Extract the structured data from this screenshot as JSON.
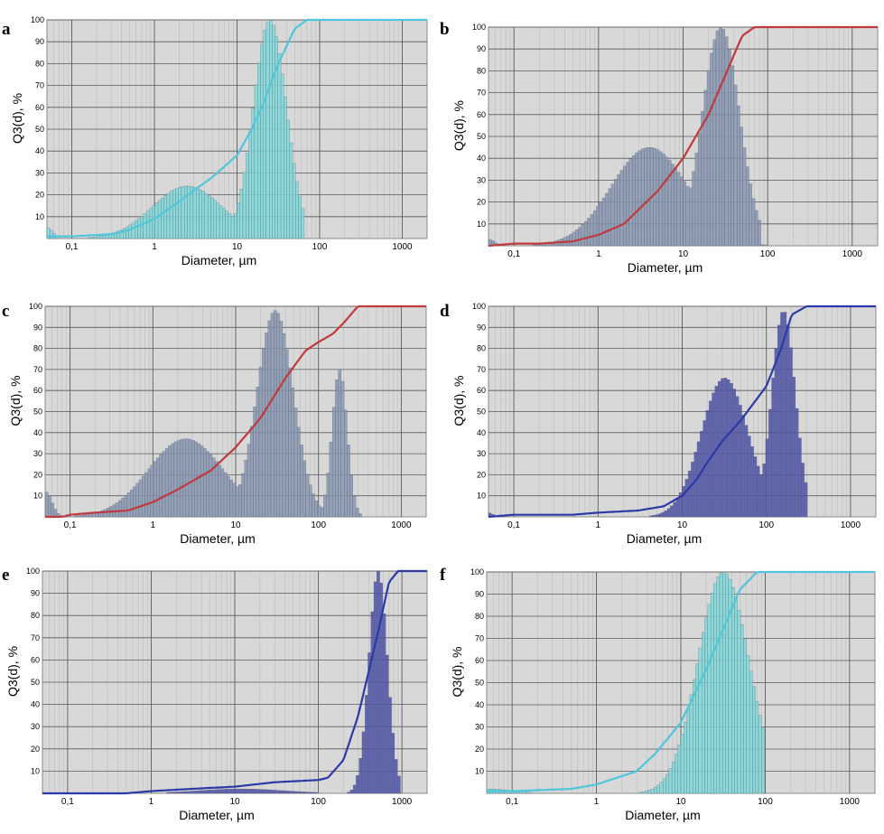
{
  "colors": {
    "plot_bg": "#d8d8d8",
    "grid_major": "#5a5a5a",
    "grid_minor": "#bcbcbc",
    "cyan_bar": "#7fd9d9",
    "cyan_line": "#4fc6dc",
    "steel_bar": "#8796b0",
    "red_line": "#c0393c",
    "navy_bar": "#4d52a8",
    "navy_line": "#2b3aa6"
  },
  "chart_data": [
    {
      "type": "bar",
      "panel": "a",
      "xlabel": "Diameter, µm",
      "ylabel": "Q3(d), %",
      "xscale": "log",
      "xlim": [
        0.05,
        2000
      ],
      "ylim": [
        0,
        100
      ],
      "x_ticks": [
        "0,1",
        "1",
        "10",
        "100",
        "1000"
      ],
      "y_ticks": [
        "10",
        "20",
        "30",
        "40",
        "50",
        "60",
        "70",
        "80",
        "90",
        "100"
      ],
      "grid": true,
      "bar_color": "cyan_bar",
      "line_color": "cyan_line",
      "histogram_peaks": [
        {
          "center": 0.05,
          "sigma": 0.07,
          "height": 5,
          "max_x": 0.085
        },
        {
          "center": 2.5,
          "sigma": 0.42,
          "height": 24
        },
        {
          "center": 25,
          "sigma": 0.2,
          "height": 100,
          "max_x": 65
        }
      ],
      "cumulative": {
        "x": [
          0.05,
          0.1,
          0.3,
          0.5,
          1,
          2,
          3,
          5,
          10,
          15,
          20,
          30,
          50,
          70,
          2000
        ],
        "y": [
          1,
          1,
          2,
          4,
          9,
          17,
          22,
          28,
          38,
          50,
          60,
          78,
          96,
          100,
          100
        ]
      }
    },
    {
      "type": "bar",
      "panel": "b",
      "xlabel": "Diameter, µm",
      "ylabel": "Q3(d), %",
      "xscale": "log",
      "xlim": [
        0.05,
        2000
      ],
      "ylim": [
        0,
        100
      ],
      "x_ticks": [
        "0,1",
        "1",
        "10",
        "100",
        "1000"
      ],
      "y_ticks": [
        "10",
        "20",
        "30",
        "40",
        "50",
        "60",
        "70",
        "80",
        "90",
        "100"
      ],
      "grid": true,
      "bar_color": "steel_bar",
      "line_color": "red_line",
      "histogram_peaks": [
        {
          "center": 0.05,
          "sigma": 0.07,
          "height": 3,
          "max_x": 0.09
        },
        {
          "center": 4,
          "sigma": 0.45,
          "height": 45
        },
        {
          "center": 28,
          "sigma": 0.22,
          "height": 100,
          "max_x": 80
        }
      ],
      "cumulative": {
        "x": [
          0.05,
          0.1,
          0.2,
          0.5,
          1,
          2,
          5,
          10,
          20,
          30,
          50,
          70,
          2000
        ],
        "y": [
          0,
          1,
          1,
          2,
          5,
          10,
          25,
          40,
          60,
          76,
          96,
          100,
          100
        ]
      }
    },
    {
      "type": "bar",
      "panel": "c",
      "xlabel": "Diameter, µm",
      "ylabel": "Q3(d), %",
      "xscale": "log",
      "xlim": [
        0.05,
        2000
      ],
      "ylim": [
        0,
        100
      ],
      "x_ticks": [
        "0,1",
        "1",
        "10",
        "100",
        "1000"
      ],
      "y_ticks": [
        "10",
        "20",
        "30",
        "40",
        "50",
        "60",
        "70",
        "80",
        "90",
        "100"
      ],
      "grid": true,
      "bar_color": "steel_bar",
      "line_color": "red_line",
      "histogram_peaks": [
        {
          "center": 0.05,
          "sigma": 0.08,
          "height": 12,
          "max_x": 0.085
        },
        {
          "center": 2.5,
          "sigma": 0.45,
          "height": 37
        },
        {
          "center": 30,
          "sigma": 0.22,
          "height": 98
        },
        {
          "center": 180,
          "sigma": 0.09,
          "height": 70,
          "max_x": 330
        }
      ],
      "cumulative": {
        "x": [
          0.08,
          0.1,
          0.2,
          0.5,
          1,
          2,
          5,
          10,
          20,
          40,
          70,
          100,
          150,
          200,
          300,
          2000
        ],
        "y": [
          0,
          1,
          2,
          3,
          7,
          13,
          22,
          33,
          47,
          66,
          79,
          83,
          87,
          92,
          100,
          100
        ]
      }
    },
    {
      "type": "bar",
      "panel": "d",
      "xlabel": "Diameter, µm",
      "ylabel": "Q3(d), %",
      "xscale": "log",
      "xlim": [
        0.05,
        2000
      ],
      "ylim": [
        0,
        100
      ],
      "x_ticks": [
        "0,1",
        "1",
        "10",
        "100",
        "1000"
      ],
      "y_ticks": [
        "10",
        "20",
        "30",
        "40",
        "50",
        "60",
        "70",
        "80",
        "90",
        "100"
      ],
      "grid": true,
      "bar_color": "navy_bar",
      "line_color": "navy_line",
      "histogram_peaks": [
        {
          "center": 0.05,
          "sigma": 0.05,
          "height": 2,
          "max_x": 0.085
        },
        {
          "center": 32,
          "sigma": 0.28,
          "height": 66
        },
        {
          "center": 160,
          "sigma": 0.14,
          "height": 98,
          "max_x": 300
        }
      ],
      "cumulative": {
        "x": [
          0.05,
          0.1,
          0.5,
          1,
          3,
          6,
          10,
          15,
          20,
          30,
          50,
          100,
          150,
          200,
          300,
          2000
        ],
        "y": [
          0,
          1,
          1,
          2,
          3,
          5,
          10,
          18,
          26,
          36,
          46,
          62,
          80,
          96,
          100,
          100
        ]
      }
    },
    {
      "type": "bar",
      "panel": "e",
      "xlabel": "Diameter, µm",
      "ylabel": "Q3(d), %",
      "xscale": "log",
      "xlim": [
        0.05,
        2000
      ],
      "ylim": [
        0,
        100
      ],
      "x_ticks": [
        "0,1",
        "1",
        "10",
        "100",
        "1000"
      ],
      "y_ticks": [
        "10",
        "20",
        "30",
        "40",
        "50",
        "60",
        "70",
        "80",
        "90",
        "100"
      ],
      "grid": true,
      "bar_color": "navy_bar",
      "line_color": "navy_line",
      "histogram_peaks": [
        {
          "center": 12,
          "sigma": 0.5,
          "height": 2
        },
        {
          "center": 520,
          "sigma": 0.11,
          "height": 100,
          "max_x": 1000
        }
      ],
      "cumulative": {
        "x": [
          0.05,
          0.5,
          1,
          3,
          10,
          30,
          100,
          130,
          200,
          300,
          500,
          700,
          900,
          2000
        ],
        "y": [
          0,
          0,
          1,
          2,
          3,
          5,
          6,
          7,
          15,
          35,
          70,
          95,
          100,
          100
        ]
      }
    },
    {
      "type": "bar",
      "panel": "f",
      "xlabel": "Diameter, µm",
      "ylabel": "Q3(d), %",
      "xscale": "log",
      "xlim": [
        0.05,
        2000
      ],
      "ylim": [
        0,
        100
      ],
      "x_ticks": [
        "0,1",
        "1",
        "10",
        "100",
        "1000"
      ],
      "y_ticks": [
        "10",
        "20",
        "30",
        "40",
        "50",
        "60",
        "70",
        "80",
        "90",
        "100"
      ],
      "grid": true,
      "bar_color": "cyan_bar",
      "line_color": "cyan_line",
      "histogram_peaks": [
        {
          "center": 0.05,
          "sigma": 0.3,
          "height": 2
        },
        {
          "center": 32,
          "sigma": 0.3,
          "height": 100,
          "max_x": 100
        }
      ],
      "cumulative": {
        "x": [
          0.05,
          0.1,
          0.5,
          1,
          3,
          5,
          10,
          20,
          30,
          50,
          80,
          100,
          2000
        ],
        "y": [
          1,
          1,
          2,
          4,
          10,
          18,
          32,
          56,
          72,
          92,
          100,
          100,
          100
        ]
      }
    }
  ]
}
